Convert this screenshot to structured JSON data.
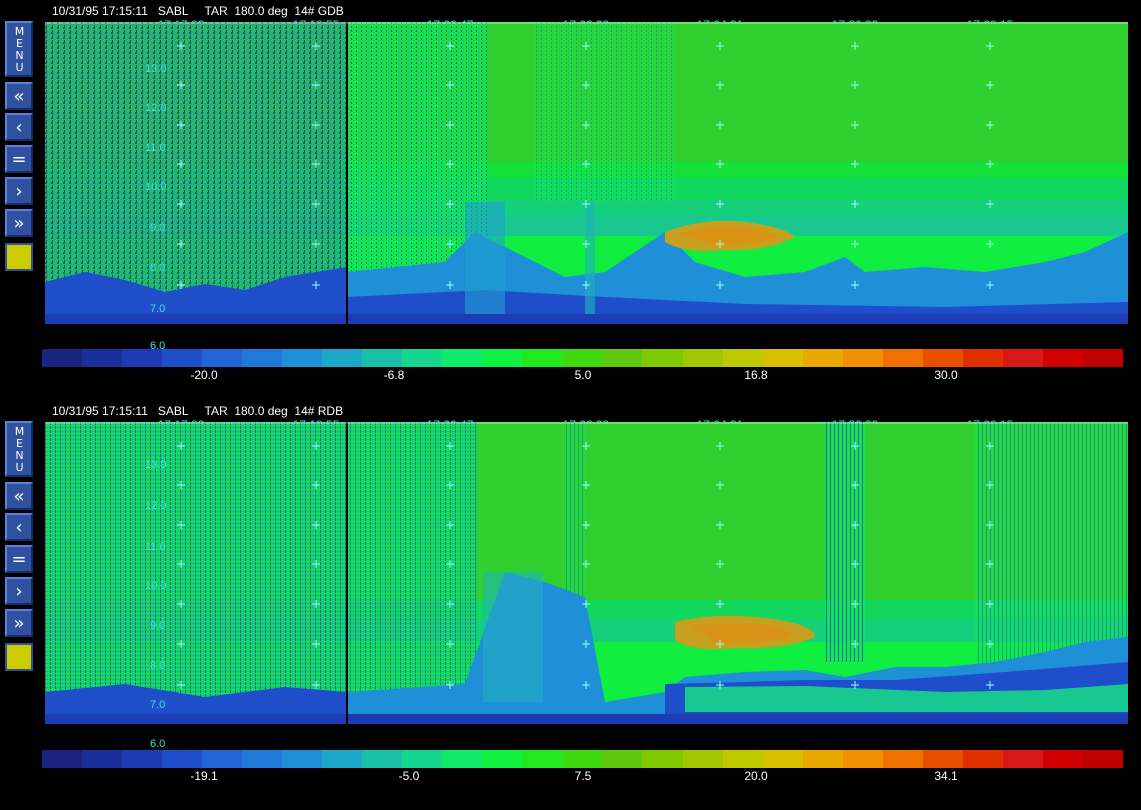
{
  "panels": [
    {
      "header": "10/31/95 17:15:11   SABL     TAR  180.0 deg  14# GDB",
      "times": [
        "17:17:03",
        "17:18:55",
        "17:20:47",
        "17:22:39",
        "17:24:31",
        "17:26:23",
        "17:28:15"
      ],
      "y_labels": [
        "13.0",
        "12.0",
        "11.0",
        "10.0",
        "9.0",
        "8.0",
        "7.0",
        "6.0"
      ],
      "colorbar_labels": [
        "-20.0",
        "-6.8",
        "5.0",
        "16.8",
        "30.0"
      ],
      "menu_label": "MENU",
      "buttons": [
        "«",
        "‹",
        "=",
        "›",
        "»"
      ]
    },
    {
      "header": "10/31/95 17:15:11   SABL     TAR  180.0 deg  14# RDB",
      "times": [
        "17:17:03",
        "17:18:55",
        "17:20:47",
        "17:22:39",
        "17:24:31",
        "17:26:23",
        "17:28:15"
      ],
      "y_labels": [
        "13.0",
        "12.0",
        "11.0",
        "10.0",
        "9.0",
        "8.0",
        "7.0",
        "6.0"
      ],
      "colorbar_labels": [
        "-19.1",
        "-5.0",
        "7.5",
        "20.0",
        "34.1"
      ],
      "menu_label": "MENU",
      "buttons": [
        "«",
        "‹",
        "=",
        "›",
        "»"
      ]
    }
  ],
  "colormap": [
    "#1a237e",
    "#1b2f9a",
    "#1d3cb3",
    "#1f4ecb",
    "#2064d6",
    "#2079d8",
    "#1f90d8",
    "#1ca8c8",
    "#18c0a8",
    "#14d68c",
    "#10ea68",
    "#10f040",
    "#22e820",
    "#40d810",
    "#60c810",
    "#80c800",
    "#a0c800",
    "#c0c800",
    "#d8c000",
    "#e8a800",
    "#f09000",
    "#f07000",
    "#e85000",
    "#e03000",
    "#d81818",
    "#d00000",
    "#c00000"
  ]
}
